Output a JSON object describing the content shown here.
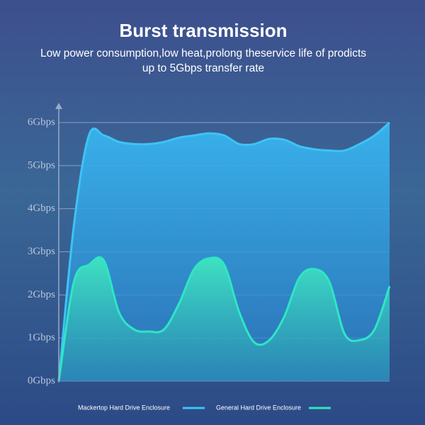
{
  "chart_data": {
    "type": "area",
    "title": "Burst transmission",
    "subtitle": [
      "Low power consumption,low heat,prolong theservice life of prodicts",
      "up to 5Gbps transfer rate"
    ],
    "categories": [
      null,
      null,
      null,
      null,
      null,
      null,
      null,
      null,
      null,
      null,
      null,
      null,
      null,
      null,
      null,
      null,
      null,
      null,
      null,
      null,
      null,
      null,
      null
    ],
    "series": [
      {
        "name": "Mackertop Hard Drive Enclosure",
        "color": "#3ec3f5",
        "values": [
          0,
          3.6,
          5.7,
          5.7,
          5.55,
          5.5,
          5.5,
          5.55,
          5.65,
          5.7,
          5.75,
          5.7,
          5.5,
          5.5,
          5.62,
          5.6,
          5.45,
          5.38,
          5.35,
          5.35,
          5.5,
          5.7,
          6.0
        ]
      },
      {
        "name": "General Hard Drive Enclosure",
        "color": "#2ee6c4",
        "values": [
          0,
          2.3,
          2.7,
          2.8,
          1.6,
          1.2,
          1.15,
          1.2,
          1.8,
          2.6,
          2.85,
          2.7,
          1.6,
          0.9,
          0.95,
          1.5,
          2.4,
          2.6,
          2.3,
          1.1,
          0.95,
          1.2,
          2.2
        ]
      }
    ],
    "ylim": [
      0,
      6
    ],
    "yticks": [
      {
        "value": 0,
        "label": "0Gbps"
      },
      {
        "value": 1,
        "label": "1Gbps"
      },
      {
        "value": 2,
        "label": "2Gbps"
      },
      {
        "value": 3,
        "label": "3Gbps"
      },
      {
        "value": 4,
        "label": "4Gbps"
      },
      {
        "value": 5,
        "label": "5Gbps"
      },
      {
        "value": 6,
        "label": "6Gbps"
      }
    ],
    "grid": true
  }
}
